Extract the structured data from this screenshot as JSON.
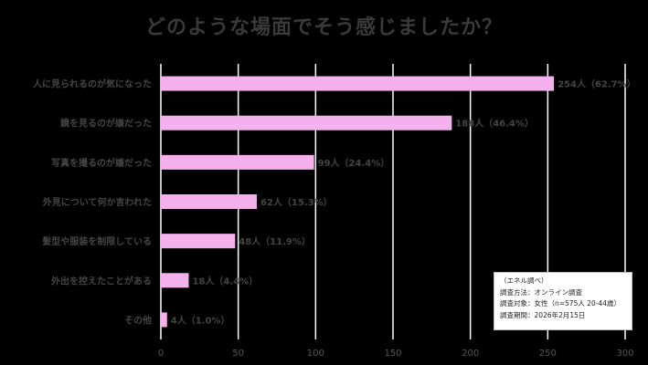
{
  "chart_data": {
    "type": "bar",
    "orientation": "horizontal",
    "title": "どのような場面でそう感じましたか？",
    "categories": [
      "人に見られるのが気になった",
      "鏡を見るのが嫌だった",
      "写真を撮るのが嫌だった",
      "外見について何か言われた",
      "髪型や服装を制限している",
      "外出を控えたことがある",
      "その他"
    ],
    "values": [
      254,
      188,
      99,
      62,
      48,
      18,
      4
    ],
    "data_labels": [
      "254人（62.7%）",
      "188人（46.4%）",
      "99人（24.4%）",
      "62人（15.3%）",
      "48人（11.9%）",
      "18人（4.4%）",
      "4人（1.0%）"
    ],
    "x_ticks": [
      0,
      50,
      100,
      150,
      200,
      250,
      300
    ],
    "xlim": [
      0,
      300
    ],
    "grid": "vertical",
    "bar_color": "#f5b0ee",
    "title_color": "#3a3a3a",
    "label_color": "#444444"
  },
  "note": {
    "source": "（エネル調べ）",
    "method": "調査方法：オンライン調査",
    "target": "調査対象：女性（n=575人 20-44歳）",
    "period": "調査期間：2026年2月15日"
  }
}
